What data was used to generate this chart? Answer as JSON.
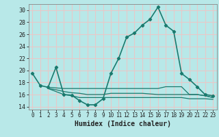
{
  "title": "",
  "xlabel": "Humidex (Indice chaleur)",
  "ylabel": "",
  "bg_color": "#b8e8e8",
  "grid_color": "#e8c8c8",
  "line_color": "#1a7a6e",
  "xlim": [
    -0.5,
    23.5
  ],
  "ylim": [
    13.5,
    31.0
  ],
  "yticks": [
    14,
    16,
    18,
    20,
    22,
    24,
    26,
    28,
    30
  ],
  "xticks": [
    0,
    1,
    2,
    3,
    4,
    5,
    6,
    7,
    8,
    9,
    10,
    11,
    12,
    13,
    14,
    15,
    16,
    17,
    18,
    19,
    20,
    21,
    22,
    23
  ],
  "series": [
    {
      "x": [
        0,
        1,
        2,
        3,
        4,
        5,
        6,
        7,
        8,
        9,
        10,
        11,
        12,
        13,
        14,
        15,
        16,
        17,
        18,
        19,
        20,
        21,
        22,
        23
      ],
      "y": [
        19.5,
        17.5,
        17.2,
        20.5,
        16.0,
        15.9,
        15.0,
        14.3,
        14.3,
        15.3,
        19.5,
        22.0,
        25.5,
        26.2,
        27.5,
        28.5,
        30.5,
        27.5,
        26.5,
        19.5,
        18.5,
        17.3,
        16.0,
        15.8
      ],
      "marker": true,
      "linewidth": 1.2,
      "zorder": 5
    },
    {
      "x": [
        2,
        3,
        4,
        5,
        6,
        7,
        8,
        9,
        10,
        11,
        12,
        13,
        14,
        15,
        16,
        17,
        18,
        19,
        20,
        21,
        22,
        23
      ],
      "y": [
        17.2,
        17.1,
        17.0,
        17.0,
        17.0,
        17.0,
        17.0,
        17.0,
        17.0,
        17.0,
        17.0,
        17.0,
        17.0,
        17.0,
        17.0,
        17.3,
        17.3,
        17.3,
        16.0,
        16.0,
        15.8,
        15.5
      ],
      "marker": false,
      "linewidth": 0.9,
      "zorder": 4
    },
    {
      "x": [
        2,
        3,
        4,
        5,
        6,
        7,
        8,
        9,
        10,
        11,
        12,
        13,
        14,
        15,
        16,
        17,
        18,
        19,
        20,
        21,
        22,
        23
      ],
      "y": [
        17.0,
        16.8,
        16.5,
        16.3,
        16.2,
        16.0,
        16.0,
        16.0,
        16.2,
        16.2,
        16.2,
        16.2,
        16.2,
        16.1,
        16.0,
        16.0,
        16.0,
        16.0,
        16.0,
        16.0,
        15.8,
        15.5
      ],
      "marker": false,
      "linewidth": 0.9,
      "zorder": 3
    },
    {
      "x": [
        2,
        3,
        4,
        5,
        6,
        7,
        8,
        9,
        10,
        11,
        12,
        13,
        14,
        15,
        16,
        17,
        18,
        19,
        20,
        21,
        22,
        23
      ],
      "y": [
        17.0,
        16.5,
        16.0,
        15.8,
        15.5,
        15.5,
        15.5,
        15.5,
        15.5,
        15.5,
        15.5,
        15.5,
        15.5,
        15.5,
        15.5,
        15.5,
        15.5,
        15.5,
        15.3,
        15.3,
        15.3,
        15.2
      ],
      "marker": false,
      "linewidth": 0.9,
      "zorder": 2
    }
  ]
}
